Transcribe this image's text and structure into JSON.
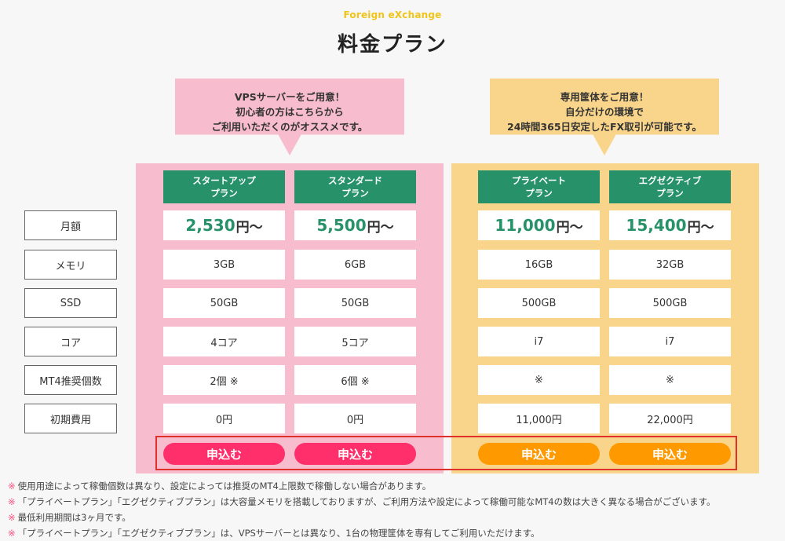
{
  "header": {
    "eyebrow": "Foreign eXchange",
    "title": "料金プラン"
  },
  "callouts": {
    "vps": [
      "VPSサーバーをご用意！",
      "初心者の方はこちらから",
      "ご利用いただくのがオススメです。"
    ],
    "dedicated": [
      "専用筐体をご用意！",
      "自分だけの環境で",
      "24時間365日安定したFX取引が可能です。"
    ]
  },
  "plans": [
    {
      "name_line1": "スタートアップ",
      "name_line2": "プラン",
      "price": "2,530",
      "memory": "3GB",
      "ssd": "50GB",
      "core": "4コア",
      "mt4": "2個 ※",
      "setup_fee": "0円"
    },
    {
      "name_line1": "スタンダード",
      "name_line2": "プラン",
      "price": "5,500",
      "memory": "6GB",
      "ssd": "50GB",
      "core": "5コア",
      "mt4": "6個 ※",
      "setup_fee": "0円"
    },
    {
      "name_line1": "プライベート",
      "name_line2": "プラン",
      "price": "11,000",
      "memory": "16GB",
      "ssd": "500GB",
      "core": "i7",
      "mt4": "※",
      "setup_fee": "11,000円"
    },
    {
      "name_line1": "エグゼクティブ",
      "name_line2": "プラン",
      "price": "15,400",
      "memory": "32GB",
      "ssd": "500GB",
      "core": "i7",
      "mt4": "※",
      "setup_fee": "22,000円"
    }
  ],
  "price_unit": "円〜",
  "rows": {
    "monthly": "月額",
    "memory": "メモリ",
    "ssd": "SSD",
    "core": "コア",
    "mt4": "MT4推奨個数",
    "setup_fee": "初期費用"
  },
  "apply_label": "申込む",
  "note_mark": "※",
  "notes": [
    "使用用途によって稼働個数は異なり、設定によっては推奨のMT4上限数で稼働しない場合があります。",
    "「プライベートプラン」「エグゼクティブプラン」は大容量メモリを搭載しておりますが、ご利用方法や設定によって稼働可能なMT4の数は大きく異なる場合がございます。",
    "最低利用期間は3ヶ月です。",
    "「プライベートプラン」「エグゼクティブプラン」は、VPSサーバーとは異なり、1台の物理筐体を専有してご利用いただけます。"
  ],
  "colors": {
    "pink_panel": "#f7bccd",
    "yellow_panel": "#f8d58a",
    "header_green": "#27926a",
    "button_pink": "#ff2f6b",
    "button_orange": "#ff9900",
    "highlight": "#e0302b"
  }
}
